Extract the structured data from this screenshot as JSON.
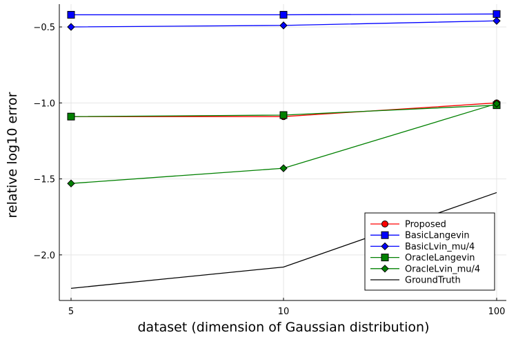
{
  "chart_data": {
    "type": "line",
    "xlabel": "dataset (dimension of Gaussian distribution)",
    "ylabel": "relative log10 error",
    "categories": [
      "5",
      "10",
      "100"
    ],
    "ylim": [
      -2.3,
      -0.35
    ],
    "yticks": [
      -0.5,
      -1.0,
      -1.5,
      -2.0
    ],
    "ytick_labels": [
      "−0.5",
      "−1.0",
      "−1.5",
      "−2.0"
    ],
    "grid": true,
    "legend_position": "bottom-right",
    "series": [
      {
        "name": "Proposed",
        "values": [
          -1.09,
          -1.09,
          -1.0
        ],
        "color": "#ff0000",
        "marker": "circle"
      },
      {
        "name": "BasicLangevin",
        "values": [
          -0.42,
          -0.42,
          -0.415
        ],
        "color": "#0000ff",
        "marker": "square"
      },
      {
        "name": "BasicLvin_mu/4",
        "values": [
          -0.5,
          -0.49,
          -0.46
        ],
        "color": "#0000ff",
        "marker": "diamond"
      },
      {
        "name": "OracleLangevin",
        "values": [
          -1.09,
          -1.08,
          -1.015
        ],
        "color": "#008000",
        "marker": "square"
      },
      {
        "name": "OracleLvin_mu/4",
        "values": [
          -1.53,
          -1.43,
          -1.005
        ],
        "color": "#008000",
        "marker": "diamond"
      },
      {
        "name": "GroundTruth",
        "values": [
          -2.22,
          -2.08,
          -1.59
        ],
        "color": "#000000",
        "marker": "none"
      }
    ]
  }
}
